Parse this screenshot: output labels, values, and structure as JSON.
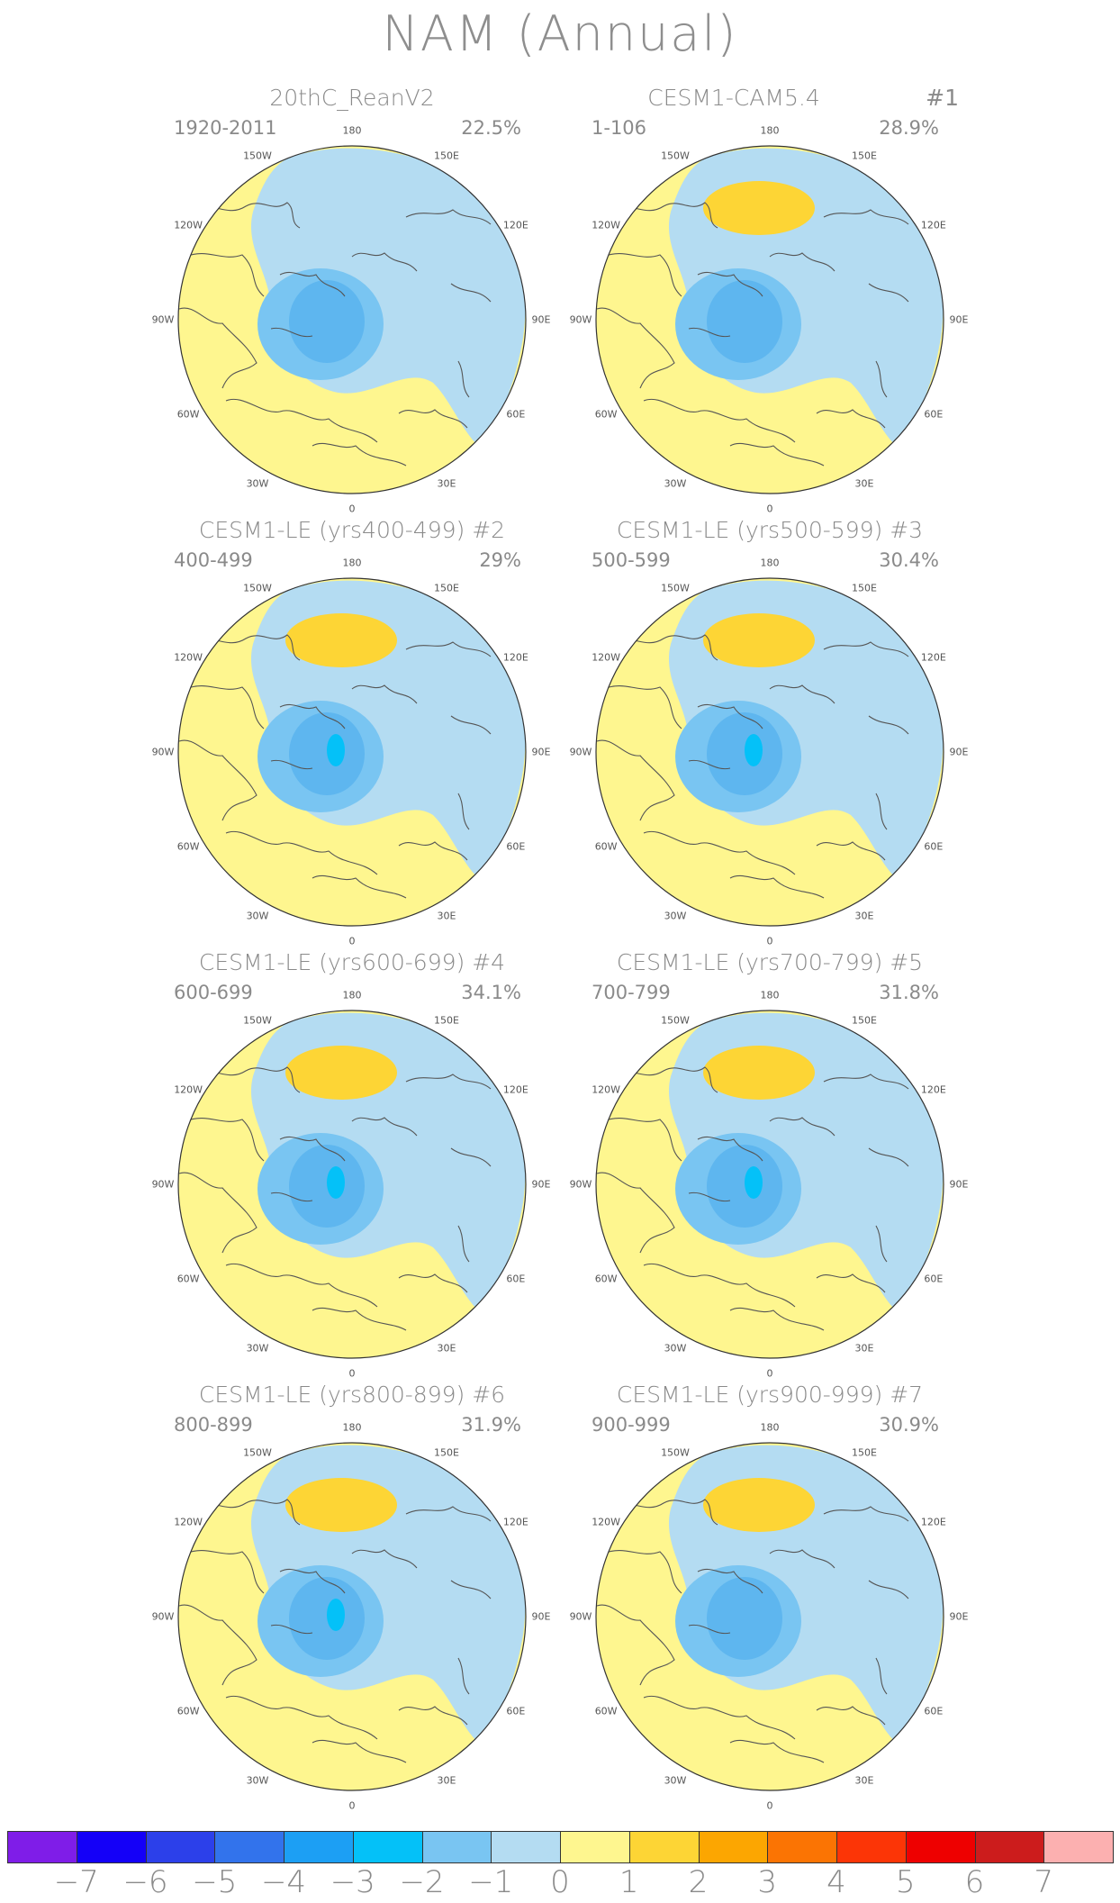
{
  "title": "NAM (Annual)",
  "lon_labels": [
    "180",
    "150E",
    "120E",
    "90E",
    "60E",
    "30E",
    "0",
    "30W",
    "60W",
    "90W",
    "120W",
    "150W"
  ],
  "colors": {
    "blue_dark": "#5eb6ef",
    "blue_mid": "#79c5f2",
    "blue_light": "#b4dcf2",
    "yellow_light": "#fef68f",
    "yellow_dark": "#fdd535",
    "cyan": "#04c1f8",
    "coast": "#555555"
  },
  "panels": [
    {
      "title": "20thC_ReanV2",
      "period": "1920-2011",
      "variance": "22.5%",
      "index": ""
    },
    {
      "title": "CESM1-CAM5.4",
      "period": "1-106",
      "variance": "28.9%",
      "index": "#1"
    },
    {
      "title": "CESM1-LE (yrs400-499) #2",
      "period": "400-499",
      "variance": "29%",
      "index": ""
    },
    {
      "title": "CESM1-LE (yrs500-599) #3",
      "period": "500-599",
      "variance": "30.4%",
      "index": ""
    },
    {
      "title": "CESM1-LE (yrs600-699) #4",
      "period": "600-699",
      "variance": "34.1%",
      "index": ""
    },
    {
      "title": "CESM1-LE (yrs700-799) #5",
      "period": "700-799",
      "variance": "31.8%",
      "index": ""
    },
    {
      "title": "CESM1-LE (yrs800-899) #6",
      "period": "800-899",
      "variance": "31.9%",
      "index": ""
    },
    {
      "title": "CESM1-LE (yrs900-999) #7",
      "period": "900-999",
      "variance": "30.9%",
      "index": ""
    }
  ],
  "colorbar": {
    "colors": [
      "#7f1de8",
      "#1400f8",
      "#2c40ea",
      "#3273ec",
      "#1c9ff4",
      "#04c1f8",
      "#79c5f2",
      "#b4dcf2",
      "#fef68f",
      "#fdd535",
      "#fca601",
      "#fb7403",
      "#fc3506",
      "#ee0000",
      "#cc1c1c",
      "#fcb0b0"
    ],
    "labels": [
      "−7",
      "−6",
      "−5",
      "−4",
      "−3",
      "−2",
      "−1",
      "0",
      "1",
      "2",
      "3",
      "4",
      "5",
      "6",
      "7"
    ]
  }
}
